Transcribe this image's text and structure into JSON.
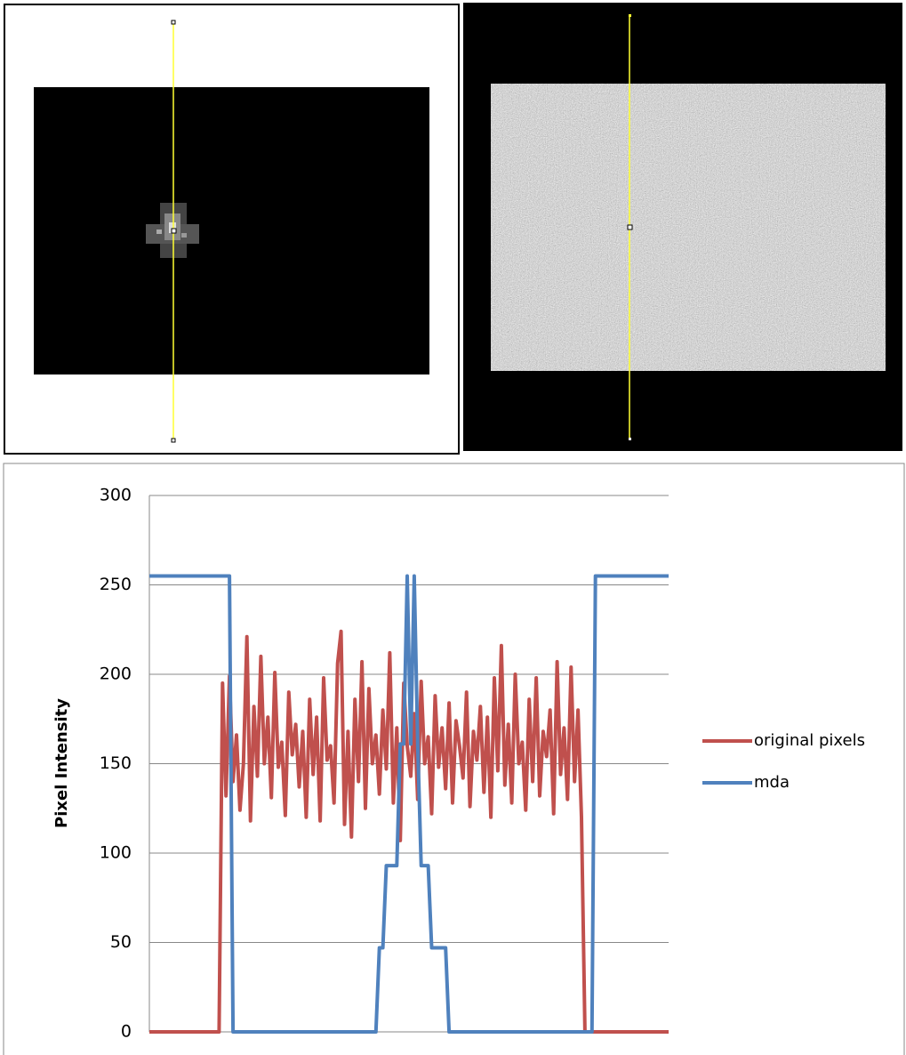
{
  "chart_data": {
    "type": "line",
    "ylabel": "Pixel Intensity",
    "ylim": [
      0,
      300
    ],
    "yticks": [
      0,
      50,
      100,
      150,
      200,
      250,
      300
    ],
    "grid": true,
    "legend": "right",
    "categories": [
      null,
      null,
      null,
      null,
      null,
      null,
      null,
      null,
      null,
      null,
      null,
      null,
      null,
      null,
      null,
      null,
      null,
      null,
      null,
      null,
      null,
      null,
      null,
      null,
      null,
      null,
      null,
      null,
      null,
      null,
      null,
      null,
      null,
      null,
      null,
      null,
      null,
      null,
      null,
      null,
      null,
      null,
      null,
      null,
      null,
      null,
      null,
      null,
      null,
      null,
      null,
      null,
      null,
      null,
      null,
      null,
      null,
      null,
      null,
      null,
      null,
      null,
      null,
      null,
      null,
      null,
      null,
      null,
      null,
      null,
      null,
      null,
      null,
      null,
      null,
      null,
      null,
      null,
      null,
      null,
      null,
      null,
      null,
      null,
      null,
      null,
      null,
      null,
      null,
      null,
      null,
      null,
      null,
      null,
      null,
      null,
      null,
      null,
      null,
      null,
      null,
      null,
      null,
      null,
      null,
      null,
      null,
      null,
      null,
      null,
      null,
      null,
      null,
      null,
      null,
      null,
      null,
      null,
      null,
      null,
      null,
      null,
      null,
      null,
      null,
      null,
      null,
      null,
      null,
      null,
      null,
      null,
      null,
      null,
      null,
      null,
      null,
      null,
      null,
      null,
      null,
      null,
      null,
      null,
      null,
      null,
      null,
      null,
      null,
      null
    ],
    "series": [
      {
        "name": "original pixels",
        "color": "#c0504d",
        "values": [
          0,
          0,
          0,
          0,
          0,
          0,
          0,
          0,
          0,
          0,
          0,
          0,
          0,
          0,
          0,
          0,
          0,
          0,
          0,
          0,
          0,
          195,
          132,
          199,
          140,
          166,
          124,
          150,
          221,
          118,
          182,
          143,
          210,
          150,
          176,
          131,
          201,
          148,
          162,
          121,
          190,
          155,
          172,
          137,
          168,
          120,
          186,
          144,
          176,
          118,
          198,
          152,
          160,
          128,
          206,
          224,
          116,
          168,
          109,
          186,
          140,
          207,
          125,
          192,
          150,
          166,
          133,
          180,
          147,
          212,
          128,
          170,
          107,
          195,
          160,
          143,
          178,
          130,
          196,
          150,
          165,
          122,
          188,
          148,
          170,
          136,
          184,
          128,
          174,
          160,
          142,
          190,
          126,
          168,
          152,
          182,
          134,
          176,
          120,
          198,
          146,
          216,
          138,
          172,
          128,
          200,
          150,
          162,
          124,
          186,
          140,
          198,
          132,
          168,
          154,
          180,
          122,
          207,
          144,
          170,
          130,
          204,
          140,
          180,
          120,
          0,
          0,
          0,
          0,
          0,
          0,
          0,
          0,
          0,
          0,
          0,
          0,
          0,
          0,
          0,
          0,
          0,
          0,
          0,
          0,
          0,
          0,
          0,
          0,
          0
        ]
      },
      {
        "name": "mda",
        "color": "#4f81bd",
        "values": [
          255,
          255,
          255,
          255,
          255,
          255,
          255,
          255,
          255,
          255,
          255,
          255,
          255,
          255,
          255,
          255,
          255,
          255,
          255,
          255,
          255,
          255,
          255,
          255,
          0,
          0,
          0,
          0,
          0,
          0,
          0,
          0,
          0,
          0,
          0,
          0,
          0,
          0,
          0,
          0,
          0,
          0,
          0,
          0,
          0,
          0,
          0,
          0,
          0,
          0,
          0,
          0,
          0,
          0,
          0,
          0,
          0,
          0,
          0,
          0,
          0,
          0,
          0,
          0,
          0,
          0,
          47,
          47,
          93,
          93,
          93,
          93,
          161,
          161,
          255,
          161,
          255,
          161,
          93,
          93,
          93,
          47,
          47,
          47,
          47,
          47,
          0,
          0,
          0,
          0,
          0,
          0,
          0,
          0,
          0,
          0,
          0,
          0,
          0,
          0,
          0,
          0,
          0,
          0,
          0,
          0,
          0,
          0,
          0,
          0,
          0,
          0,
          0,
          0,
          0,
          0,
          0,
          0,
          0,
          0,
          0,
          0,
          0,
          0,
          0,
          0,
          0,
          0,
          255,
          255,
          255,
          255,
          255,
          255,
          255,
          255,
          255,
          255,
          255,
          255,
          255,
          255,
          255,
          255,
          255,
          255,
          255,
          255,
          255,
          255
        ]
      }
    ]
  }
}
